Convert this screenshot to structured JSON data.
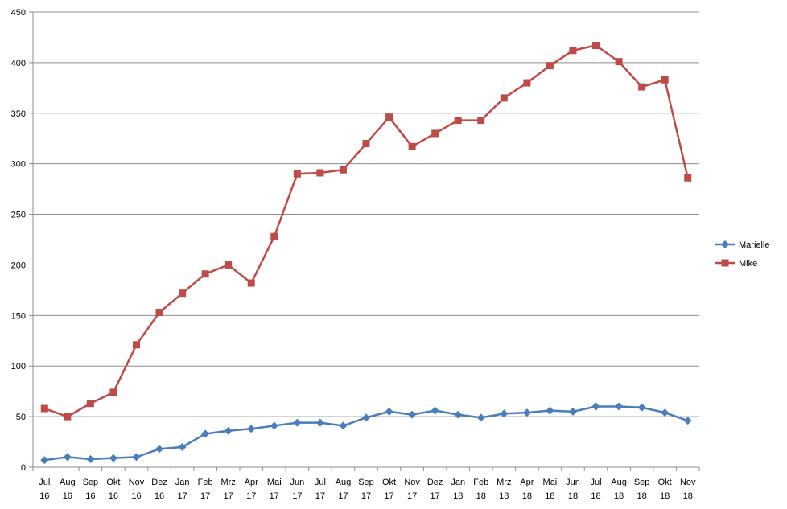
{
  "chart_data": {
    "type": "line",
    "categories": [
      "Jul 16",
      "Aug 16",
      "Sep 16",
      "Okt 16",
      "Nov 16",
      "Dez 16",
      "Jan 17",
      "Feb 17",
      "Mrz 17",
      "Apr 17",
      "Mai 17",
      "Jun 17",
      "Jul 17",
      "Aug 17",
      "Sep 17",
      "Okt 17",
      "Nov 17",
      "Dez 17",
      "Jan 18",
      "Feb 18",
      "Mrz 18",
      "Apr 18",
      "Mai 18",
      "Jun 18",
      "Jul 18",
      "Aug 18",
      "Sep 18",
      "Okt 18",
      "Nov 18"
    ],
    "series": [
      {
        "name": "Marielle",
        "color": "#4a7ebb",
        "marker": "diamond",
        "values": [
          7,
          10,
          8,
          9,
          10,
          18,
          20,
          33,
          36,
          38,
          41,
          44,
          44,
          41,
          49,
          55,
          52,
          56,
          52,
          49,
          53,
          54,
          56,
          55,
          60,
          60,
          59,
          54,
          46
        ]
      },
      {
        "name": "Mike",
        "color": "#be4b48",
        "marker": "square",
        "values": [
          58,
          50,
          63,
          74,
          121,
          153,
          172,
          191,
          200,
          182,
          228,
          290,
          291,
          294,
          320,
          346,
          317,
          330,
          343,
          343,
          365,
          380,
          397,
          412,
          417,
          401,
          376,
          383,
          286
        ]
      }
    ],
    "ylim": [
      0,
      450
    ],
    "yticks": [
      0,
      50,
      100,
      150,
      200,
      250,
      300,
      350,
      400,
      450
    ],
    "grid": true,
    "legend": "right"
  }
}
